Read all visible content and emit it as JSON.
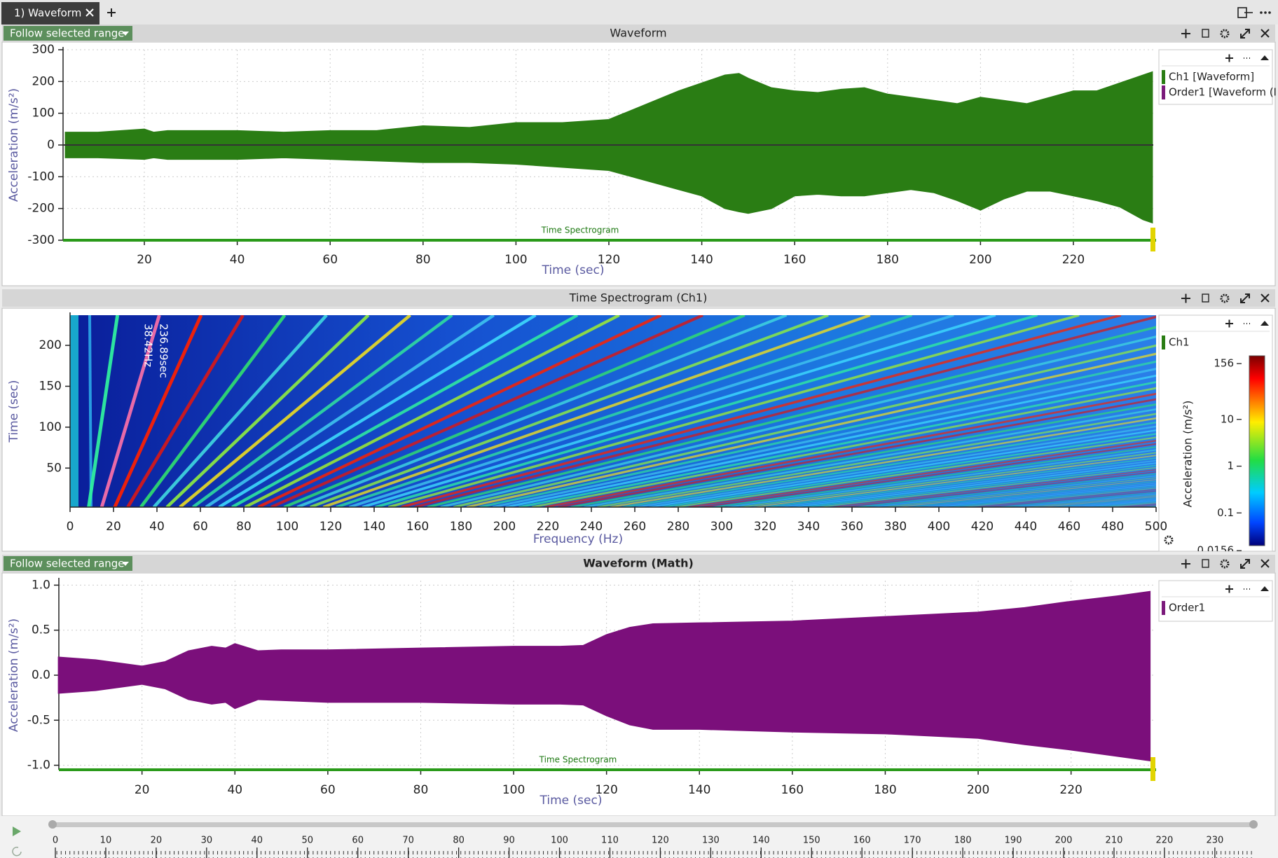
{
  "tab": {
    "label": "1) Waveform"
  },
  "panels": [
    {
      "title": "Waveform",
      "button": "Follow selected range",
      "chart_data": {
        "type": "area",
        "ylabel": "Acceleration (m/s²)",
        "xlabel": "Time (sec)",
        "xlim": [
          2.5,
          237.2
        ],
        "ylim": [
          -300,
          300
        ],
        "yticks": [
          300,
          200,
          100,
          0,
          -100,
          -200,
          -300
        ],
        "xticks": [
          20,
          40,
          60,
          80,
          100,
          120,
          140,
          160,
          180,
          200,
          220
        ],
        "grid": true,
        "zero_line": true,
        "color": "#2a7d14",
        "x": [
          3,
          10,
          20,
          22,
          25,
          30,
          40,
          50,
          60,
          70,
          80,
          90,
          100,
          110,
          120,
          125,
          130,
          135,
          140,
          145,
          148,
          150,
          155,
          160,
          165,
          170,
          175,
          180,
          185,
          190,
          195,
          200,
          205,
          210,
          215,
          220,
          225,
          230,
          235,
          237
        ],
        "upper": [
          40,
          40,
          50,
          40,
          45,
          45,
          45,
          40,
          45,
          45,
          60,
          55,
          70,
          70,
          80,
          110,
          140,
          170,
          195,
          220,
          225,
          210,
          180,
          170,
          165,
          175,
          180,
          160,
          150,
          140,
          130,
          150,
          140,
          130,
          150,
          170,
          170,
          195,
          220,
          230
        ],
        "lower": [
          -40,
          -40,
          -45,
          -40,
          -45,
          -45,
          -45,
          -40,
          -45,
          -50,
          -55,
          -55,
          -60,
          -70,
          -80,
          -100,
          -120,
          -140,
          -160,
          -200,
          -210,
          -215,
          -200,
          -160,
          -155,
          -160,
          -160,
          -150,
          -140,
          -150,
          -175,
          -205,
          -170,
          -145,
          -145,
          -160,
          -175,
          -195,
          -235,
          -245
        ],
        "strip_label": "Time Spectrogram",
        "legend": [
          {
            "name": "Ch1 [Waveform]",
            "color": "#2a7d14"
          },
          {
            "name": "Order1 [Waveform (I",
            "color": "#7b1a7b"
          }
        ]
      }
    },
    {
      "title": "Time Spectrogram (Ch1)",
      "chart_data": {
        "type": "heatmap",
        "ylabel": "Time (sec)",
        "xlabel": "Frequency (Hz)",
        "xlim": [
          0,
          500
        ],
        "ylim": [
          2.3,
          236.9
        ],
        "xticks": [
          0,
          20,
          40,
          60,
          80,
          100,
          120,
          140,
          160,
          180,
          200,
          220,
          240,
          260,
          280,
          300,
          320,
          340,
          360,
          380,
          400,
          420,
          440,
          460,
          480,
          500
        ],
        "yticks": [
          50,
          100,
          150,
          200
        ],
        "annotations": [
          "236.89sec",
          "38.42Hz"
        ],
        "colorbar": {
          "label": "Acceleration (m/s²)",
          "log": true,
          "clim": [
            0.02,
            229
          ],
          "ticks": [
            156,
            10,
            1,
            0.1,
            0.0156
          ]
        },
        "legend": [
          {
            "name": "Ch1",
            "color": "#2a7d14"
          }
        ]
      }
    },
    {
      "title": "Waveform (Math)",
      "button": "Follow selected range",
      "chart_data": {
        "type": "area",
        "ylabel": "Acceleration (m/s²)",
        "xlabel": "Time (sec)",
        "xlim": [
          2.1,
          237.7
        ],
        "ylim": [
          -1.05,
          1.05
        ],
        "yticks": [
          {
            "value": 1,
            "label": "1.0"
          },
          {
            "value": 0.5,
            "label": "0.5"
          },
          {
            "value": 0,
            "label": "0.0"
          },
          {
            "value": -0.5,
            "label": "-0.5"
          },
          {
            "value": -1,
            "label": "-1.0"
          }
        ],
        "xticks": [
          20,
          40,
          60,
          80,
          100,
          120,
          140,
          160,
          180,
          200,
          220
        ],
        "grid": true,
        "zero_line": false,
        "color": "#7b0f7b",
        "x": [
          2,
          10,
          20,
          25,
          30,
          35,
          38,
          40,
          45,
          50,
          60,
          80,
          100,
          110,
          115,
          120,
          125,
          130,
          140,
          160,
          180,
          200,
          210,
          220,
          230,
          237
        ],
        "upper": [
          0.2,
          0.17,
          0.1,
          0.15,
          0.27,
          0.32,
          0.3,
          0.35,
          0.27,
          0.28,
          0.28,
          0.3,
          0.32,
          0.32,
          0.33,
          0.45,
          0.53,
          0.57,
          0.58,
          0.6,
          0.65,
          0.7,
          0.75,
          0.82,
          0.88,
          0.93
        ],
        "lower": [
          -0.2,
          -0.17,
          -0.1,
          -0.15,
          -0.27,
          -0.32,
          -0.3,
          -0.37,
          -0.27,
          -0.28,
          -0.3,
          -0.3,
          -0.32,
          -0.32,
          -0.33,
          -0.45,
          -0.55,
          -0.6,
          -0.6,
          -0.63,
          -0.65,
          -0.7,
          -0.77,
          -0.83,
          -0.9,
          -0.95
        ],
        "strip_label": "Time Spectrogram",
        "legend": [
          {
            "name": "Order1",
            "color": "#7b1a7b"
          }
        ]
      }
    }
  ],
  "timeline": {
    "xlim": [
      0,
      237.8
    ],
    "ticks": [
      0,
      10,
      20,
      30,
      40,
      50,
      60,
      70,
      80,
      90,
      100,
      110,
      120,
      130,
      140,
      150,
      160,
      170,
      180,
      190,
      200,
      210,
      220,
      230
    ]
  }
}
